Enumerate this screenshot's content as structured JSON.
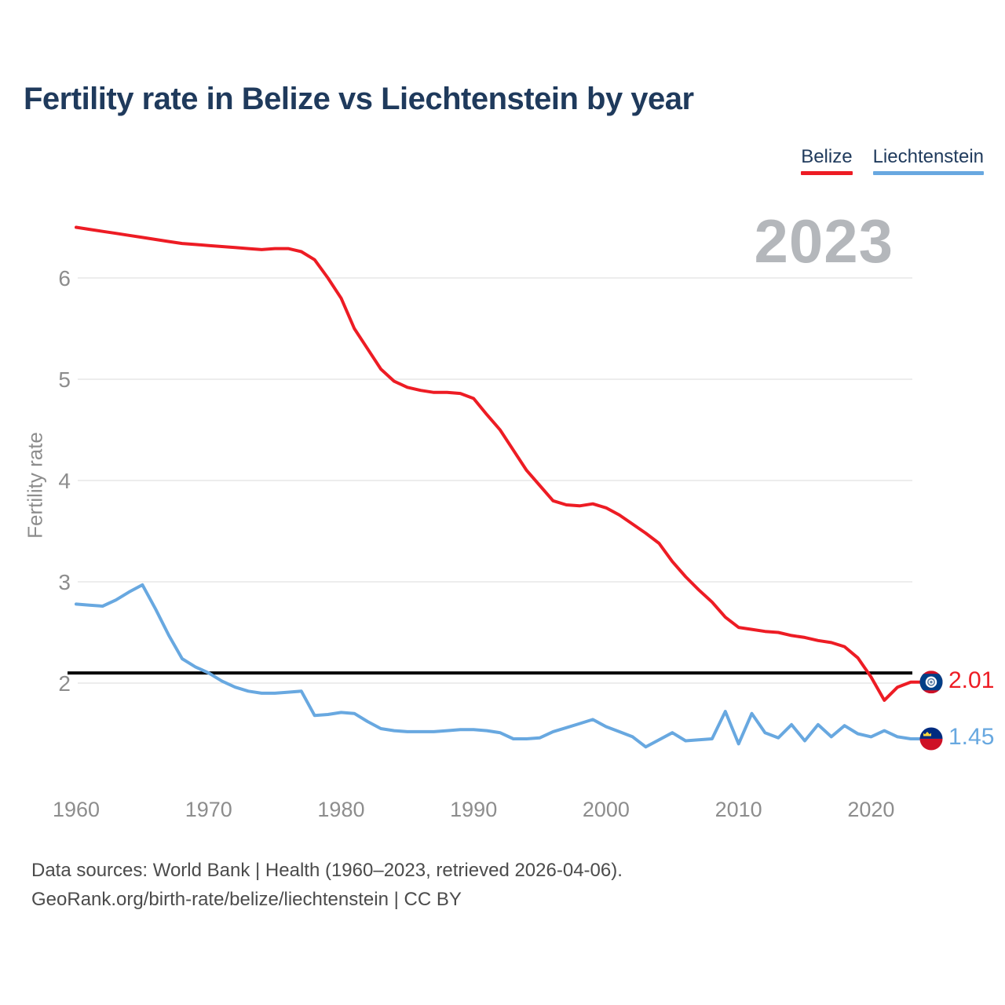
{
  "title": "Fertility rate in Belize vs Liechtenstein by year",
  "watermark": "2023",
  "legend": [
    {
      "label": "Belize",
      "color": "#ed1c24"
    },
    {
      "label": "Liechtenstein",
      "color": "#68a8e0"
    }
  ],
  "y_axis": {
    "label": "Fertility rate",
    "ticks": [
      2,
      3,
      4,
      5,
      6
    ]
  },
  "x_axis": {
    "ticks": [
      1960,
      1970,
      1980,
      1990,
      2000,
      2010,
      2020
    ]
  },
  "reference_line": {
    "value": 2.1,
    "color": "#000000"
  },
  "end_labels": [
    {
      "series": "Belize",
      "value": "2.01",
      "color": "#ed1c24"
    },
    {
      "series": "Liechtenstein",
      "value": "1.45",
      "color": "#68a8e0"
    }
  ],
  "footer": {
    "line1": "Data sources: World Bank | Health (1960–2023, retrieved 2026-04-06).",
    "line2": "GeoRank.org/birth-rate/belize/liechtenstein | CC BY"
  },
  "chart_data": {
    "type": "line",
    "title": "Fertility rate in Belize vs Liechtenstein by year",
    "xlabel": "year",
    "ylabel": "Fertility rate",
    "x_start": 1960,
    "x_end": 2023,
    "ylim": [
      1.2,
      6.65
    ],
    "grid": "horizontal",
    "legend_position": "top-right",
    "annotations": {
      "replacement_level_line": 2.1,
      "year_watermark": "2023"
    },
    "series": [
      {
        "name": "Belize",
        "color": "#ed1c24",
        "end_value": 2.01,
        "values": [
          6.5,
          6.48,
          6.46,
          6.44,
          6.42,
          6.4,
          6.38,
          6.36,
          6.34,
          6.33,
          6.32,
          6.31,
          6.3,
          6.29,
          6.28,
          6.29,
          6.29,
          6.26,
          6.18,
          6.0,
          5.8,
          5.5,
          5.3,
          5.1,
          4.98,
          4.92,
          4.89,
          4.87,
          4.87,
          4.86,
          4.81,
          4.65,
          4.5,
          4.3,
          4.1,
          3.95,
          3.8,
          3.76,
          3.75,
          3.77,
          3.73,
          3.66,
          3.57,
          3.48,
          3.38,
          3.2,
          3.05,
          2.92,
          2.8,
          2.65,
          2.55,
          2.53,
          2.51,
          2.5,
          2.47,
          2.45,
          2.42,
          2.4,
          2.36,
          2.25,
          2.06,
          1.83,
          1.96,
          2.01
        ]
      },
      {
        "name": "Liechtenstein",
        "color": "#68a8e0",
        "end_value": 1.45,
        "values": [
          2.78,
          2.77,
          2.76,
          2.82,
          2.9,
          2.97,
          2.73,
          2.47,
          2.24,
          2.16,
          2.1,
          2.02,
          1.96,
          1.92,
          1.9,
          1.9,
          1.91,
          1.92,
          1.68,
          1.69,
          1.71,
          1.7,
          1.62,
          1.55,
          1.53,
          1.52,
          1.52,
          1.52,
          1.53,
          1.54,
          1.54,
          1.53,
          1.51,
          1.45,
          1.45,
          1.46,
          1.52,
          1.56,
          1.6,
          1.64,
          1.57,
          1.52,
          1.47,
          1.37,
          1.44,
          1.51,
          1.43,
          1.44,
          1.45,
          1.72,
          1.4,
          1.7,
          1.51,
          1.46,
          1.59,
          1.43,
          1.59,
          1.47,
          1.58,
          1.5,
          1.47,
          1.53,
          1.47,
          1.45
        ]
      }
    ]
  }
}
